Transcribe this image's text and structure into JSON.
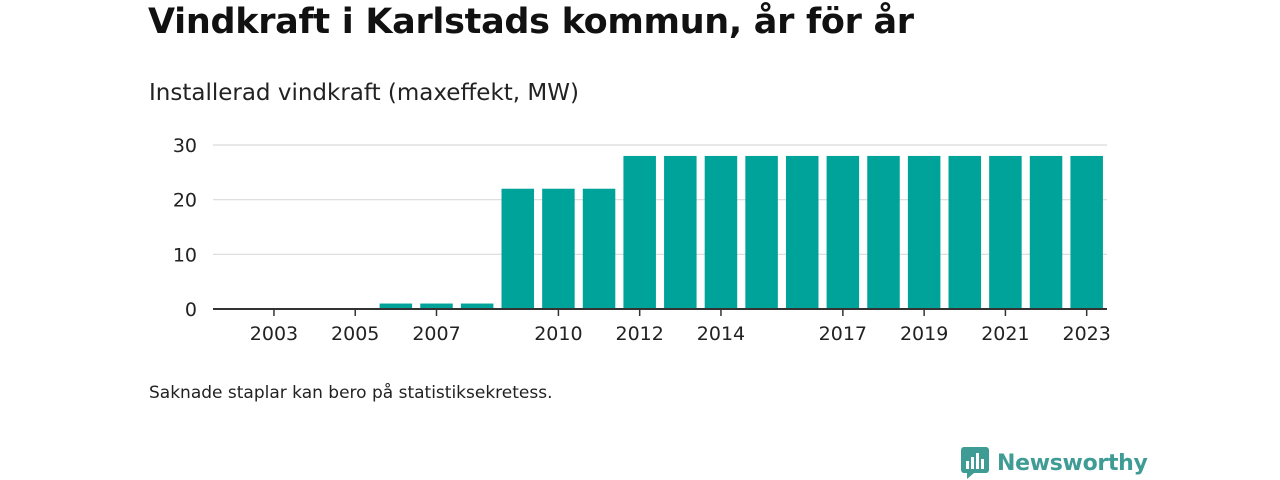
{
  "title": "Vindkraft i Karlstads kommun, år för år",
  "subtitle": "Installerad vindkraft (maxeffekt, MW)",
  "footnote": "Saknade staplar kan bero på statistiksekretess.",
  "brand": {
    "name": "Newsworthy",
    "icon": "newsworthy-logo-icon"
  },
  "colors": {
    "bar": "#00a39a",
    "grid": "#d9d9d9",
    "axis": "#333333",
    "brand": "#3f9c95"
  },
  "chart_data": {
    "type": "bar",
    "categories": [
      "2002",
      "2003",
      "2004",
      "2005",
      "2006",
      "2007",
      "2008",
      "2009",
      "2010",
      "2011",
      "2012",
      "2013",
      "2014",
      "2015",
      "2016",
      "2017",
      "2018",
      "2019",
      "2020",
      "2021",
      "2022",
      "2023"
    ],
    "values": [
      0,
      0,
      0,
      0,
      1,
      1,
      1,
      22,
      22,
      22,
      28,
      28,
      28,
      28,
      28,
      28,
      28,
      28,
      28,
      28,
      28,
      28
    ],
    "tick_labels": [
      "2003",
      "2005",
      "2007",
      "2010",
      "2012",
      "2014",
      "2017",
      "2019",
      "2021",
      "2023"
    ],
    "yticks": [
      0,
      10,
      20,
      30
    ],
    "ylim": [
      0,
      30
    ],
    "grid": true,
    "legend": "none"
  }
}
